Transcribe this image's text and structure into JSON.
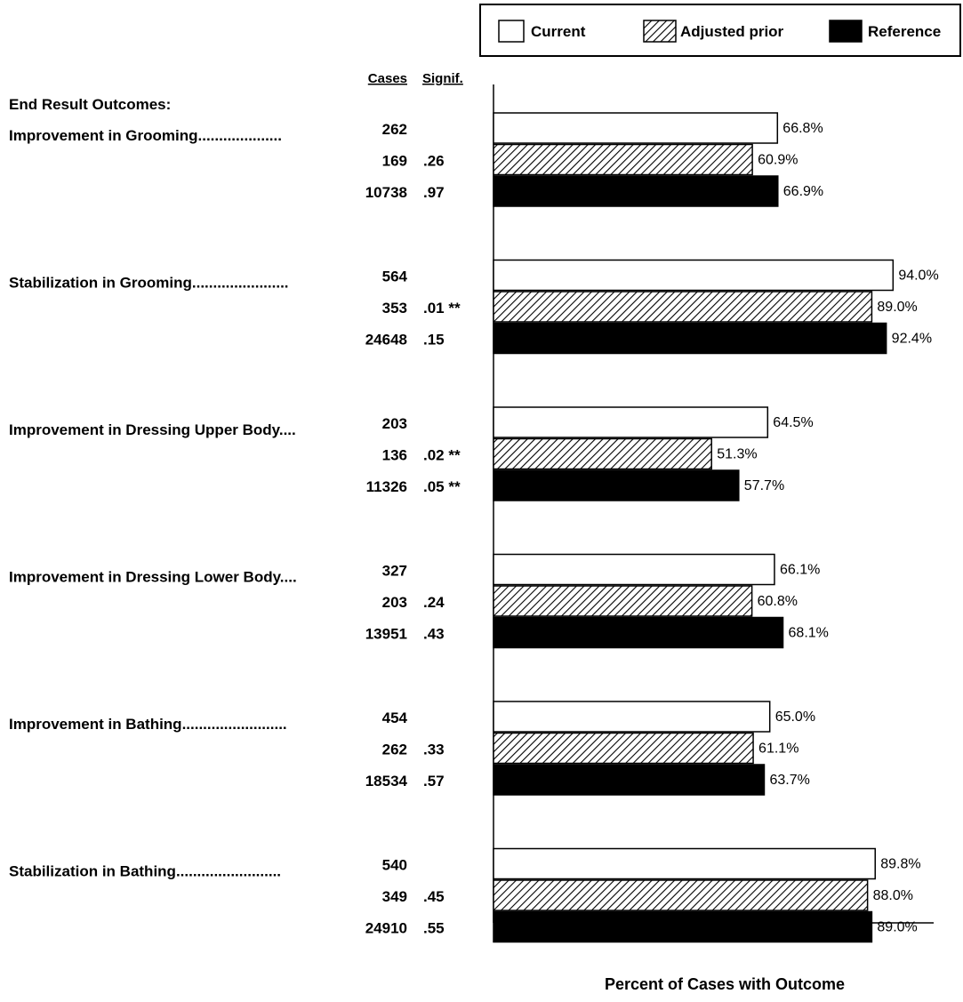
{
  "chart_data": {
    "type": "bar",
    "orientation": "horizontal",
    "section_title": "End Result Outcomes:",
    "column_headers": {
      "cases": "Cases",
      "signif": "Signif."
    },
    "xlabel": "Percent of Cases with Outcome",
    "xlim": [
      0,
      100
    ],
    "grid": false,
    "legend": {
      "placement": "top-right",
      "items": [
        {
          "name": "Current",
          "fill": "#ffffff",
          "pattern": "none"
        },
        {
          "name": "Adjusted prior",
          "fill": "#ffffff",
          "pattern": "diagonal-hatch"
        },
        {
          "name": "Reference",
          "fill": "#000000",
          "pattern": "none"
        }
      ]
    },
    "series_names": [
      "Current",
      "Adjusted prior",
      "Reference"
    ],
    "categories": [
      {
        "label": "Improvement in Grooming....................",
        "rows": [
          {
            "cases": "262",
            "signif": "",
            "value": 66.8,
            "value_label": "66.8%"
          },
          {
            "cases": "169",
            "signif": ".26",
            "value": 60.9,
            "value_label": "60.9%"
          },
          {
            "cases": "10738",
            "signif": ".97",
            "value": 66.9,
            "value_label": "66.9%"
          }
        ]
      },
      {
        "label": "Stabilization in Grooming.......................",
        "rows": [
          {
            "cases": "564",
            "signif": "",
            "value": 94.0,
            "value_label": "94.0%"
          },
          {
            "cases": "353",
            "signif": ".01 **",
            "value": 89.0,
            "value_label": "89.0%"
          },
          {
            "cases": "24648",
            "signif": ".15",
            "value": 92.4,
            "value_label": "92.4%"
          }
        ]
      },
      {
        "label": "Improvement in Dressing Upper Body....",
        "rows": [
          {
            "cases": "203",
            "signif": "",
            "value": 64.5,
            "value_label": "64.5%"
          },
          {
            "cases": "136",
            "signif": ".02 **",
            "value": 51.3,
            "value_label": "51.3%"
          },
          {
            "cases": "11326",
            "signif": ".05 **",
            "value": 57.7,
            "value_label": "57.7%"
          }
        ]
      },
      {
        "label": "Improvement in Dressing Lower Body....",
        "rows": [
          {
            "cases": "327",
            "signif": "",
            "value": 66.1,
            "value_label": "66.1%"
          },
          {
            "cases": "203",
            "signif": ".24",
            "value": 60.8,
            "value_label": "60.8%"
          },
          {
            "cases": "13951",
            "signif": ".43",
            "value": 68.1,
            "value_label": "68.1%"
          }
        ]
      },
      {
        "label": "Improvement in Bathing.........................",
        "rows": [
          {
            "cases": "454",
            "signif": "",
            "value": 65.0,
            "value_label": "65.0%"
          },
          {
            "cases": "262",
            "signif": ".33",
            "value": 61.1,
            "value_label": "61.1%"
          },
          {
            "cases": "18534",
            "signif": ".57",
            "value": 63.7,
            "value_label": "63.7%"
          }
        ]
      },
      {
        "label": "Stabilization in Bathing.........................",
        "rows": [
          {
            "cases": "540",
            "signif": "",
            "value": 89.8,
            "value_label": "89.8%"
          },
          {
            "cases": "349",
            "signif": ".45",
            "value": 88.0,
            "value_label": "88.0%"
          },
          {
            "cases": "24910",
            "signif": ".55",
            "value": 89.0,
            "value_label": "89.0%"
          }
        ]
      }
    ]
  }
}
